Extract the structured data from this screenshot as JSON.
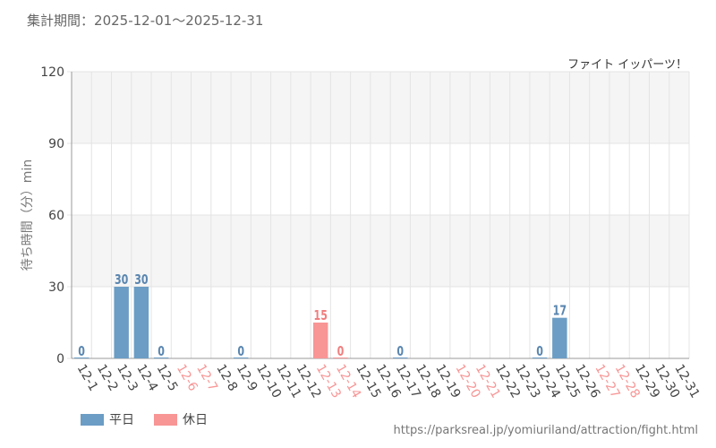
{
  "header": {
    "period_label": "集計期間",
    "period_separator": "：",
    "period_start": "2025-12-01",
    "period_range_sep": "～",
    "period_end": "2025-12-31",
    "attraction_name": "ファイト イッパーツ！"
  },
  "footer": {
    "source_url": "https://parksreal.jp/yomiuriland/attraction/fight.html"
  },
  "colors": {
    "weekday": "#6b9dc5",
    "holiday": "#f89595",
    "weekday_text": "#5a86b0",
    "holiday_text": "#f07e7e",
    "band": "#f5f5f5",
    "grid": "#e4e4e4"
  },
  "chart_data": {
    "type": "bar",
    "ylabel": "待ち時間（分）min",
    "ylim": [
      0,
      120
    ],
    "yticks": [
      0,
      30,
      60,
      90,
      120
    ],
    "legend": [
      {
        "name": "平日",
        "key": "weekday"
      },
      {
        "name": "休日",
        "key": "holiday"
      }
    ],
    "categories": [
      "12-1",
      "12-2",
      "12-3",
      "12-4",
      "12-5",
      "12-6",
      "12-7",
      "12-8",
      "12-9",
      "12-10",
      "12-11",
      "12-12",
      "12-13",
      "12-14",
      "12-15",
      "12-16",
      "12-17",
      "12-18",
      "12-19",
      "12-20",
      "12-21",
      "12-22",
      "12-23",
      "12-24",
      "12-25",
      "12-26",
      "12-27",
      "12-28",
      "12-29",
      "12-30",
      "12-31"
    ],
    "holidays": [
      false,
      false,
      false,
      false,
      false,
      true,
      true,
      false,
      false,
      false,
      false,
      false,
      true,
      true,
      false,
      false,
      false,
      false,
      false,
      true,
      true,
      false,
      false,
      false,
      false,
      false,
      true,
      true,
      false,
      false,
      false
    ],
    "values": [
      0,
      null,
      30,
      30,
      0,
      null,
      null,
      null,
      0,
      null,
      null,
      null,
      15,
      0,
      null,
      null,
      0,
      null,
      null,
      null,
      null,
      null,
      null,
      0,
      17,
      null,
      null,
      null,
      null,
      null,
      null
    ]
  }
}
